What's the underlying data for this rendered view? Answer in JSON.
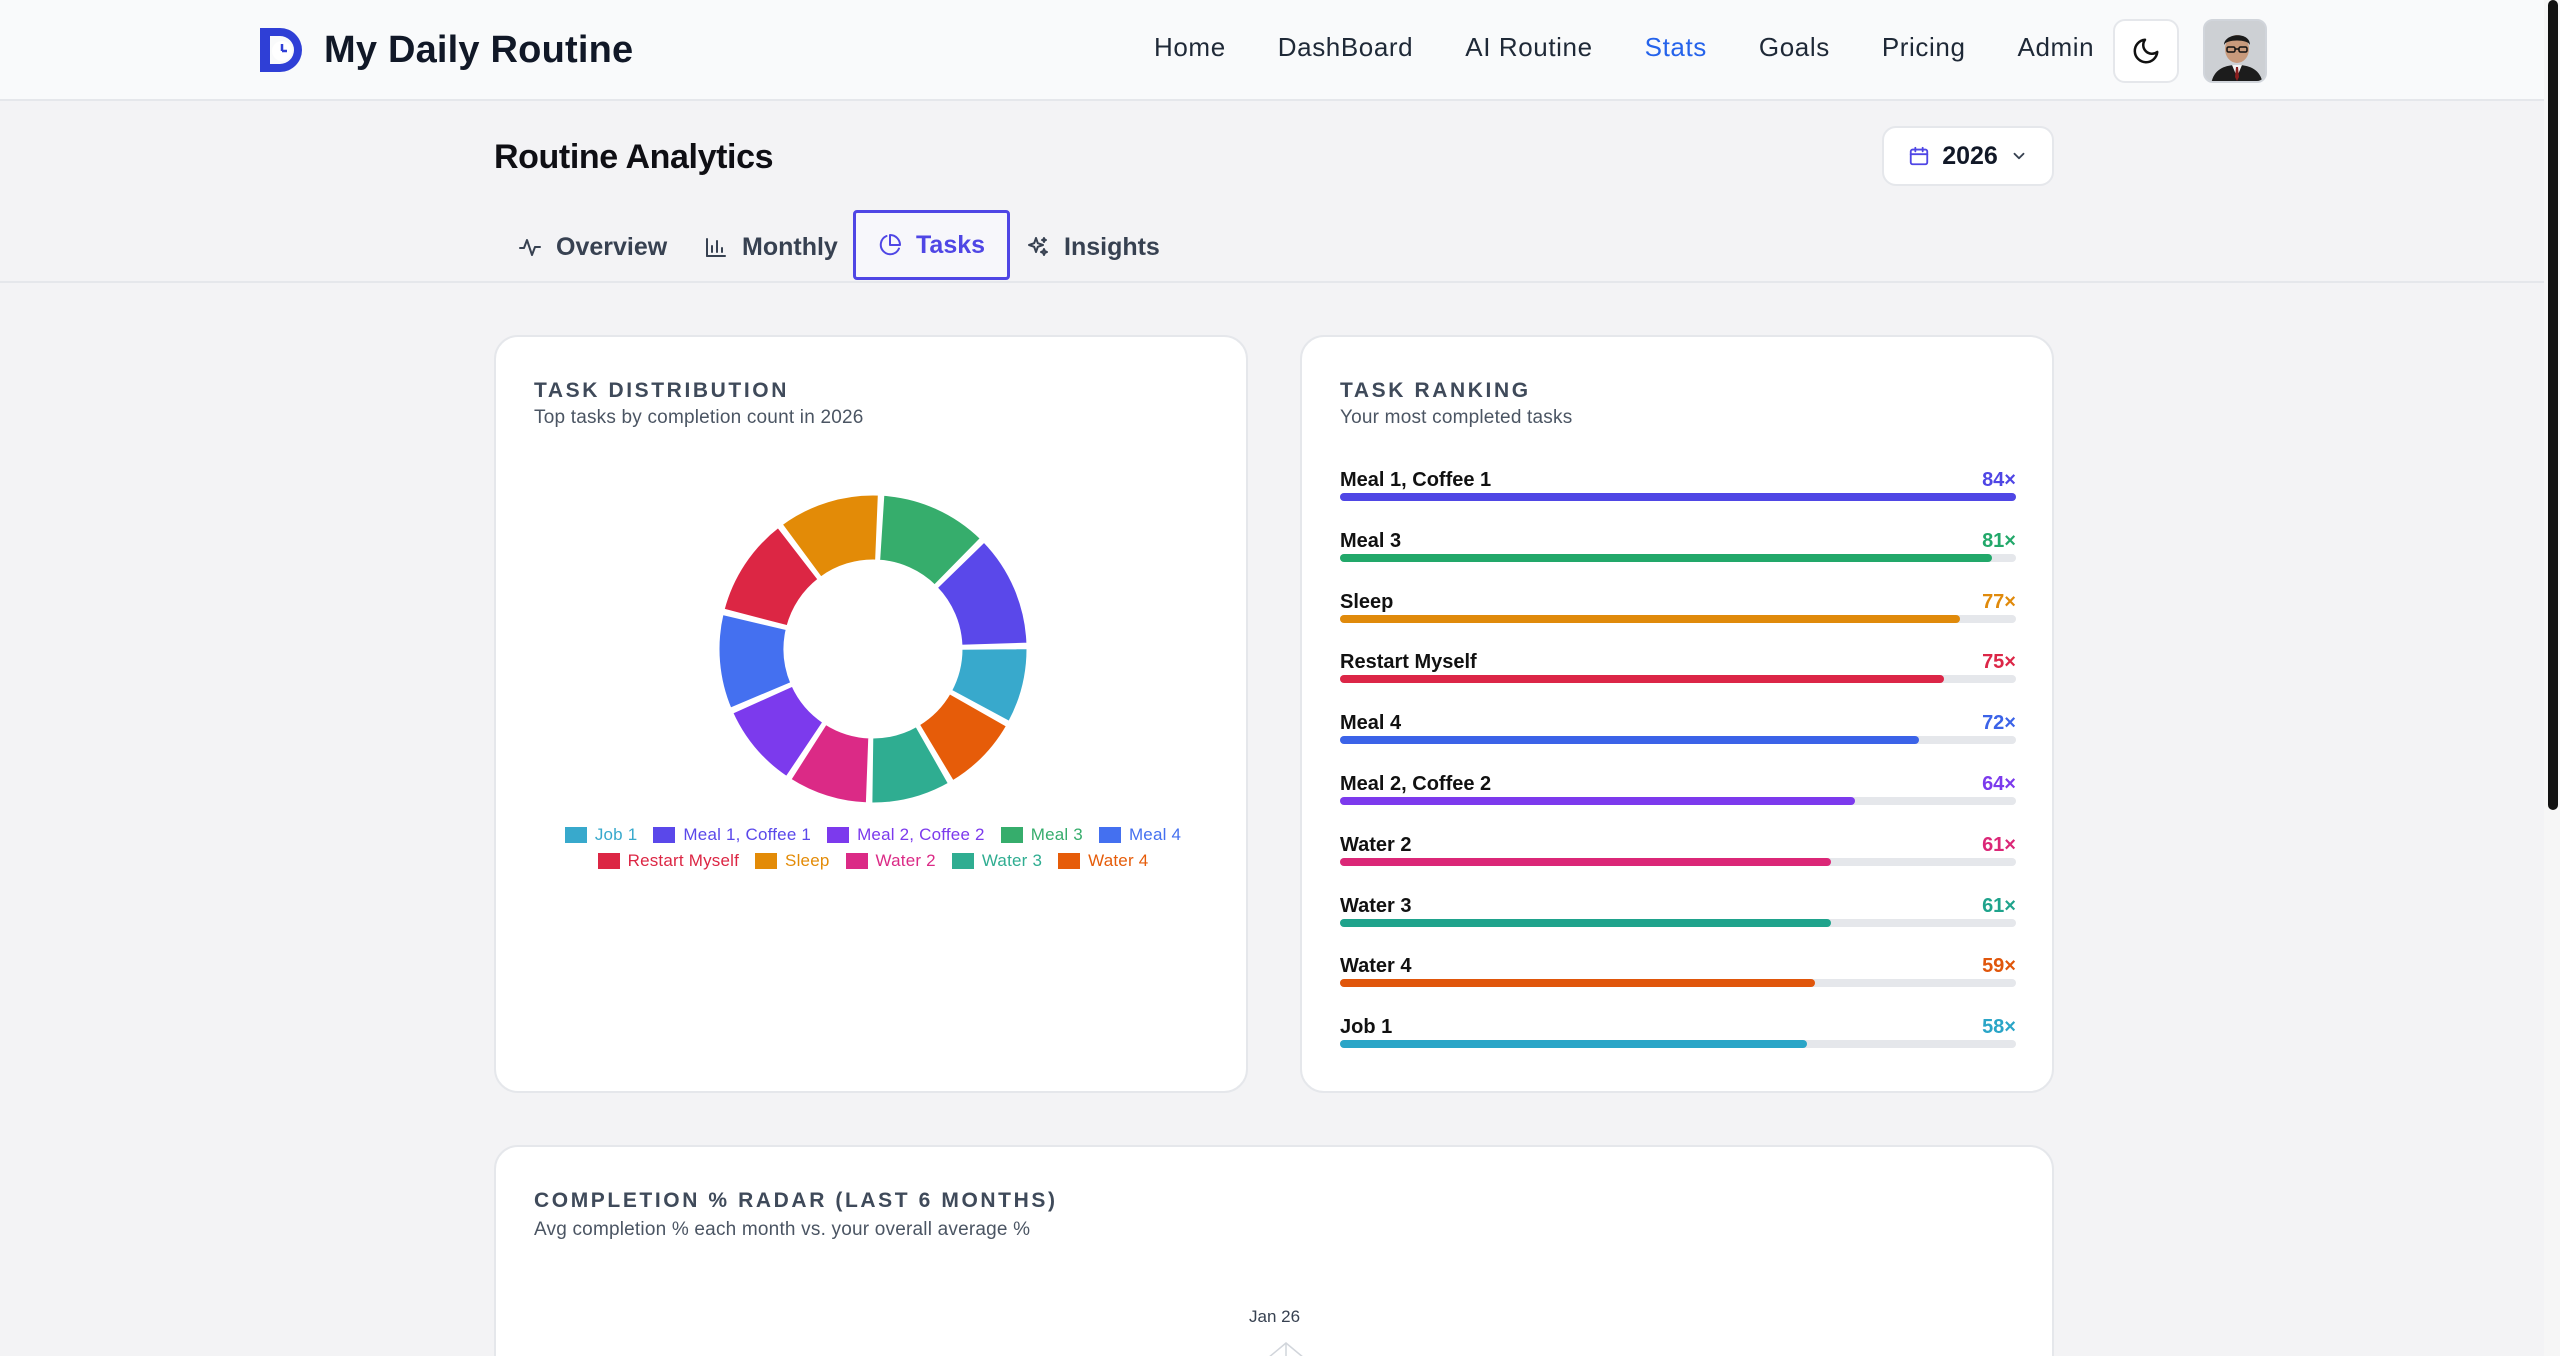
{
  "app": {
    "title": "My Daily Routine"
  },
  "nav": {
    "links": [
      {
        "label": "Home",
        "active": false
      },
      {
        "label": "DashBoard",
        "active": false
      },
      {
        "label": "AI Routine",
        "active": false
      },
      {
        "label": "Stats",
        "active": true
      },
      {
        "label": "Goals",
        "active": false
      },
      {
        "label": "Pricing",
        "active": false
      },
      {
        "label": "Admin",
        "active": false
      }
    ],
    "theme_icon": "moon-icon",
    "avatar_icon": "user-avatar"
  },
  "header": {
    "title": "Routine Analytics",
    "year": "2026",
    "year_icon": "calendar-icon",
    "year_chevron": "chevron-down-icon"
  },
  "tabs": [
    {
      "label": "Overview",
      "icon": "activity-icon",
      "active": false
    },
    {
      "label": "Monthly",
      "icon": "bar-chart-icon",
      "active": false
    },
    {
      "label": "Tasks",
      "icon": "pie-chart-icon",
      "active": true
    },
    {
      "label": "Insights",
      "icon": "sparkles-icon",
      "active": false
    }
  ],
  "distribution": {
    "title": "TASK DISTRIBUTION",
    "subtitle": "Top tasks by completion count in 2026"
  },
  "ranking": {
    "title": "TASK RANKING",
    "subtitle": "Your most completed tasks",
    "items": [
      {
        "name": "Meal 1, Coffee 1",
        "count_label": "84×",
        "value": 84,
        "color": "#4f46e5"
      },
      {
        "name": "Meal 3",
        "count_label": "81×",
        "value": 81,
        "color": "#22a86a"
      },
      {
        "name": "Sleep",
        "count_label": "77×",
        "value": 77,
        "color": "#e08a0b"
      },
      {
        "name": "Restart Myself",
        "count_label": "75×",
        "value": 75,
        "color": "#dc2647"
      },
      {
        "name": "Meal 4",
        "count_label": "72×",
        "value": 72,
        "color": "#3b63e8"
      },
      {
        "name": "Meal 2, Coffee 2",
        "count_label": "64×",
        "value": 64,
        "color": "#7c3aed"
      },
      {
        "name": "Water 2",
        "count_label": "61×",
        "value": 61,
        "color": "#db2777"
      },
      {
        "name": "Water 3",
        "count_label": "61×",
        "value": 61,
        "color": "#1fa38c"
      },
      {
        "name": "Water 4",
        "count_label": "59×",
        "value": 59,
        "color": "#e0560b"
      },
      {
        "name": "Job 1",
        "count_label": "58×",
        "value": 58,
        "color": "#2aa5c7"
      }
    ],
    "max": 84
  },
  "chart_data": {
    "type": "pie",
    "title": "TASK DISTRIBUTION",
    "subtitle": "Top tasks by completion count in 2026",
    "slices": [
      {
        "label": "Job 1",
        "value": 58,
        "color": "#38a9cc"
      },
      {
        "label": "Meal 1, Coffee 1",
        "value": 84,
        "color": "#5a48ea"
      },
      {
        "label": "Meal 2, Coffee 2",
        "value": 64,
        "color": "#7c3aed"
      },
      {
        "label": "Meal 3",
        "value": 81,
        "color": "#36ad6c"
      },
      {
        "label": "Meal 4",
        "value": 72,
        "color": "#4470f0"
      },
      {
        "label": "Restart Myself",
        "value": 75,
        "color": "#dc2644"
      },
      {
        "label": "Sleep",
        "value": 77,
        "color": "#e38b07"
      },
      {
        "label": "Water 2",
        "value": 61,
        "color": "#db2a86"
      },
      {
        "label": "Water 3",
        "value": 61,
        "color": "#2fad91"
      },
      {
        "label": "Water 4",
        "value": 59,
        "color": "#e65c09"
      }
    ],
    "legend_rows": [
      [
        "Job 1",
        "Meal 1, Coffee 1",
        "Meal 2, Coffee 2",
        "Meal 3",
        "Meal 4"
      ],
      [
        "Restart Myself",
        "Sleep",
        "Water 2",
        "Water 3",
        "Water 4"
      ]
    ],
    "legend_position": "bottom"
  },
  "radar": {
    "title": "COMPLETION % RADAR (LAST 6 MONTHS)",
    "subtitle": "Avg completion % each month vs. your overall average %",
    "top_label": "Jan 26"
  }
}
